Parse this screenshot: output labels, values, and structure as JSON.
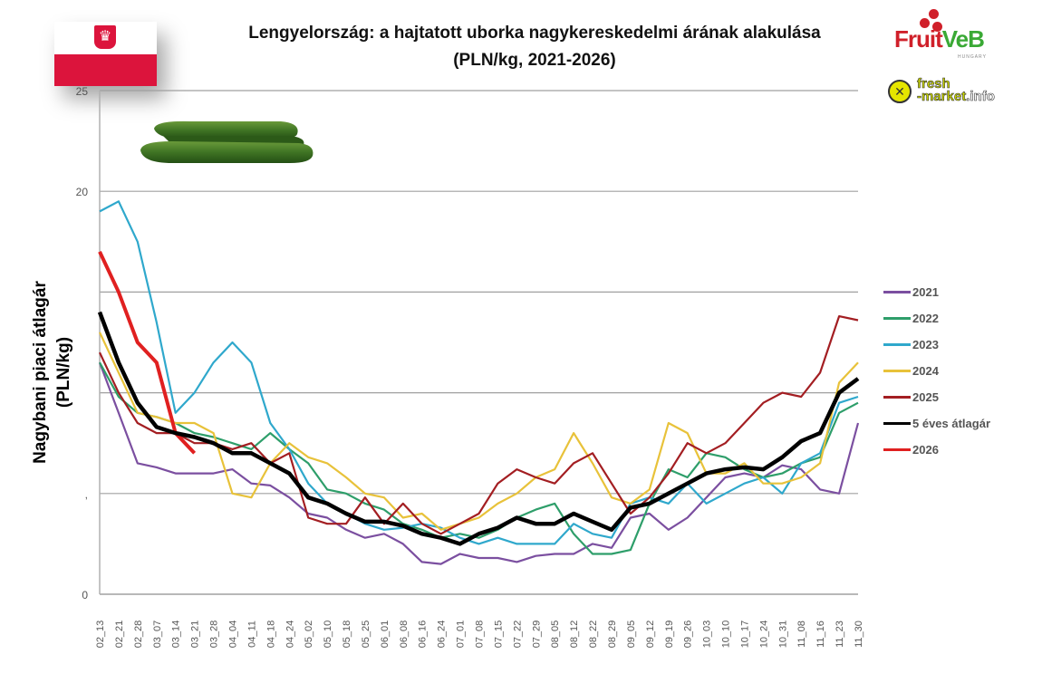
{
  "header": {
    "title_line1": "Lengyelország: a hajtatott uborka nagykereskedelmi árának alakulása",
    "title_line2": "(PLN/kg, 2021-2026)"
  },
  "logos": {
    "fruitveb_part1": "Fruit",
    "fruitveb_part2": "VeB",
    "fruitveb_sub": "HUNGARY",
    "freshmarket_line1": "fresh",
    "freshmarket_line2a": "-market",
    "freshmarket_line2b": ".info"
  },
  "flag_icon": "poland-flag-icon",
  "image_icon": "cucumber-image",
  "chart_data": {
    "type": "line",
    "title": "Lengyelország: a hajtatott uborka nagykereskedelmi árának alakulása (PLN/kg, 2021-2026)",
    "xlabel": "",
    "ylabel": "Nagybani piaci átlagár (PLN/kg)",
    "ylim": [
      0,
      25
    ],
    "yticks": [
      0,
      5,
      10,
      15,
      20,
      25
    ],
    "ytick_labels": [
      "0",
      ",",
      "",
      "",
      "20",
      "25"
    ],
    "grid": true,
    "legend_position": "right",
    "categories": [
      "02_13",
      "02_21",
      "02_28",
      "03_07",
      "03_14",
      "03_21",
      "03_28",
      "04_04",
      "04_11",
      "04_18",
      "04_24",
      "05_02",
      "05_10",
      "05_18",
      "05_25",
      "06_01",
      "06_08",
      "06_16",
      "06_24",
      "07_01",
      "07_08",
      "07_15",
      "07_22",
      "07_29",
      "08_05",
      "08_12",
      "08_22",
      "08_29",
      "09_05",
      "09_12",
      "09_19",
      "09_26",
      "10_03",
      "10_10",
      "10_17",
      "10_24",
      "10_31",
      "11_08",
      "11_16",
      "11_23",
      "11_30"
    ],
    "series": [
      {
        "name": "2021",
        "color": "#7b4fa0",
        "values": [
          11.5,
          9.0,
          6.5,
          6.3,
          6.0,
          6.0,
          6.0,
          6.2,
          5.5,
          5.4,
          4.8,
          4.0,
          3.8,
          3.2,
          2.8,
          3.0,
          2.5,
          1.6,
          1.5,
          2.0,
          1.8,
          1.8,
          1.6,
          1.9,
          2.0,
          2.0,
          2.5,
          2.3,
          3.8,
          4.0,
          3.2,
          3.8,
          4.8,
          5.8,
          6.0,
          5.8,
          6.4,
          6.2,
          5.2,
          5.0,
          8.5
        ]
      },
      {
        "name": "2022",
        "color": "#2e9e6a",
        "values": [
          11.5,
          9.8,
          9.0,
          8.8,
          8.5,
          8.0,
          7.8,
          7.5,
          7.2,
          8.0,
          7.2,
          6.5,
          5.2,
          5.0,
          4.5,
          4.2,
          3.5,
          3.2,
          2.8,
          3.0,
          2.8,
          3.2,
          3.8,
          4.2,
          4.5,
          3.0,
          2.0,
          2.0,
          2.2,
          4.5,
          6.2,
          5.8,
          7.0,
          6.8,
          6.2,
          5.8,
          6.0,
          6.5,
          6.8,
          9.0,
          9.5
        ]
      },
      {
        "name": "2023",
        "color": "#2fa8cc",
        "values": [
          19.0,
          19.5,
          17.5,
          13.5,
          9.0,
          10.0,
          11.5,
          12.5,
          11.5,
          8.5,
          7.2,
          5.5,
          4.5,
          4.0,
          3.5,
          3.2,
          3.3,
          3.5,
          3.3,
          2.8,
          2.5,
          2.8,
          2.5,
          2.5,
          2.5,
          3.5,
          3.0,
          2.8,
          4.5,
          4.8,
          4.5,
          5.5,
          4.5,
          5.0,
          5.5,
          5.8,
          5.0,
          6.5,
          7.0,
          9.5,
          9.8
        ]
      },
      {
        "name": "2024",
        "color": "#e8c23a",
        "values": [
          13.0,
          11.0,
          9.0,
          8.8,
          8.5,
          8.5,
          8.0,
          5.0,
          4.8,
          6.5,
          7.5,
          6.8,
          6.5,
          5.8,
          5.0,
          4.8,
          3.8,
          4.0,
          3.2,
          3.5,
          3.8,
          4.5,
          5.0,
          5.8,
          6.2,
          8.0,
          6.5,
          4.8,
          4.5,
          5.2,
          8.5,
          8.0,
          6.0,
          6.0,
          6.5,
          5.5,
          5.5,
          5.8,
          6.5,
          10.5,
          11.5
        ]
      },
      {
        "name": "2025",
        "color": "#a31e22",
        "values": [
          12.0,
          10.0,
          8.5,
          8.0,
          8.0,
          7.5,
          7.5,
          7.2,
          7.5,
          6.5,
          7.0,
          3.8,
          3.5,
          3.5,
          4.8,
          3.5,
          4.5,
          3.5,
          3.0,
          3.5,
          4.0,
          5.5,
          6.2,
          5.8,
          5.5,
          6.5,
          7.0,
          5.5,
          4.0,
          4.8,
          6.0,
          7.5,
          7.0,
          7.5,
          8.5,
          9.5,
          10.0,
          9.8,
          11.0,
          13.8,
          13.6
        ]
      },
      {
        "name": "5 éves átlagár",
        "color": "#000000",
        "values": [
          14.0,
          11.5,
          9.5,
          8.3,
          8.0,
          7.8,
          7.5,
          7.0,
          7.0,
          6.5,
          6.0,
          4.8,
          4.5,
          4.0,
          3.6,
          3.6,
          3.4,
          3.0,
          2.8,
          2.5,
          3.0,
          3.3,
          3.8,
          3.5,
          3.5,
          4.0,
          3.6,
          3.2,
          4.3,
          4.5,
          5.0,
          5.5,
          6.0,
          6.2,
          6.3,
          6.2,
          6.8,
          7.6,
          8.0,
          10.0,
          10.7
        ]
      },
      {
        "name": "2026",
        "color": "#e02020",
        "values": [
          17.0,
          15.0,
          12.5,
          11.5,
          8.0,
          7.0,
          null,
          null,
          null,
          null,
          null,
          null,
          null,
          null,
          null,
          null,
          null,
          null,
          null,
          null,
          null,
          null,
          null,
          null,
          null,
          null,
          null,
          null,
          null,
          null,
          null,
          null,
          null,
          null,
          null,
          null,
          null,
          null,
          null,
          null,
          null
        ]
      }
    ]
  }
}
